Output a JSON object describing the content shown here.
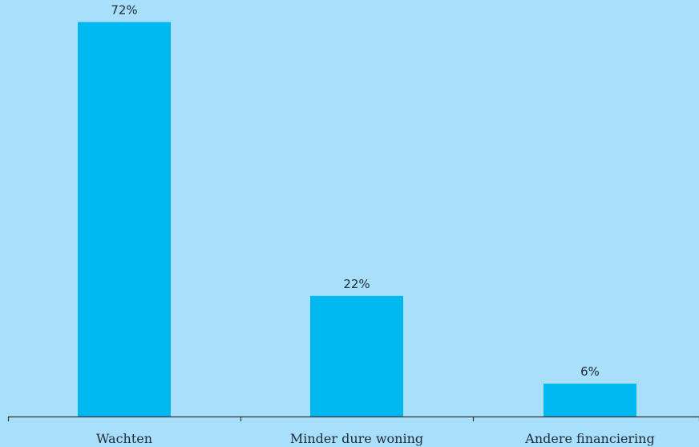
{
  "chart_data": {
    "type": "bar",
    "categories": [
      "Wachten",
      "Minder dure woning",
      "Andere financiering"
    ],
    "values": [
      72,
      22,
      6
    ],
    "value_labels": [
      "72%",
      "22%",
      "6%"
    ],
    "ylim": [
      0,
      75
    ],
    "grid": false,
    "legend": "none",
    "bar_color": "#00b8f0",
    "axis_color": "#333333",
    "background_color": "#a8dffa"
  }
}
